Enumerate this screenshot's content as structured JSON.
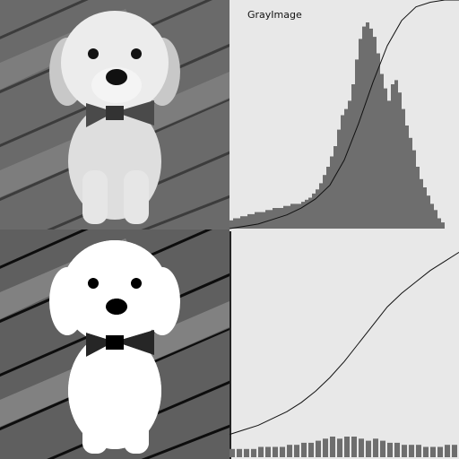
{
  "title": "GrayImage",
  "histograms": [
    {
      "values": [
        4,
        5,
        5,
        6,
        6,
        7,
        7,
        8,
        8,
        8,
        9,
        9,
        10,
        10,
        10,
        11,
        11,
        12,
        12,
        12,
        13,
        14,
        15,
        17,
        19,
        22,
        26,
        30,
        35,
        40,
        48,
        55,
        58,
        62,
        70,
        82,
        92,
        98,
        100,
        97,
        93,
        85,
        75,
        68,
        62,
        70,
        72,
        66,
        58,
        50,
        44,
        38,
        30,
        24,
        20,
        16,
        12,
        9,
        5,
        3,
        0,
        0,
        0,
        0
      ],
      "cdf": [
        0,
        1,
        2,
        4,
        6,
        9,
        13,
        19,
        30,
        46,
        64,
        80,
        91,
        97,
        99,
        100,
        100
      ]
    },
    {
      "values": [
        4,
        4,
        4,
        4,
        5,
        5,
        5,
        5,
        6,
        6,
        7,
        7,
        8,
        9,
        10,
        9,
        10,
        10,
        9,
        8,
        9,
        8,
        7,
        7,
        6,
        6,
        6,
        5,
        5,
        5,
        6,
        6
      ],
      "cdf": [
        10,
        12,
        14,
        17,
        20,
        24,
        29,
        35,
        42,
        50,
        58,
        66,
        72,
        77,
        82,
        86,
        90
      ]
    }
  ]
}
